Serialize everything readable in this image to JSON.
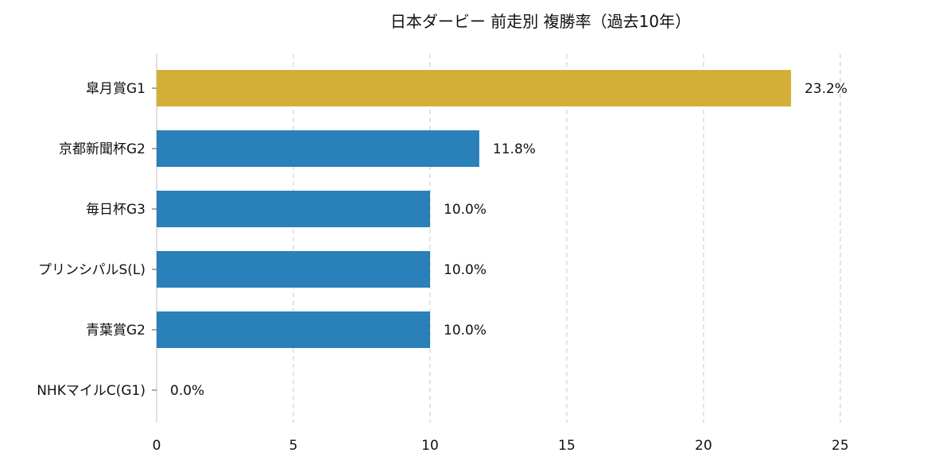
{
  "chart_data": {
    "type": "bar",
    "orientation": "horizontal",
    "title": "日本ダービー 前走別 複勝率（過去10年）",
    "xlabel": "",
    "ylabel": "",
    "xlim": [
      0,
      27.5
    ],
    "xticks": [
      0,
      5,
      10,
      15,
      20,
      25
    ],
    "grid": "x-dashed",
    "categories": [
      "皐月賞G1",
      "京都新聞杯G2",
      "毎日杯G3",
      "プリンシパルS(L)",
      "青葉賞G2",
      "NHKマイルC(G1)"
    ],
    "values": [
      23.2,
      11.8,
      10.0,
      10.0,
      10.0,
      0.0
    ],
    "value_labels": [
      "23.2%",
      "11.8%",
      "10.0%",
      "10.0%",
      "10.0%",
      "0.0%"
    ],
    "colors": [
      "#d4af37",
      "#2a80b9",
      "#2a80b9",
      "#2a80b9",
      "#2a80b9",
      "#2a80b9"
    ]
  }
}
